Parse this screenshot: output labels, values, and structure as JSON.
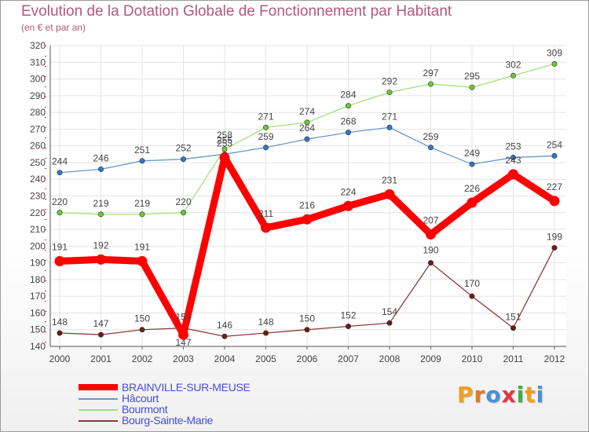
{
  "header": {
    "title": "Evolution de la Dotation Globale de Fonctionnement par Habitant",
    "subtitle": "(en € et par an)"
  },
  "brand": {
    "letters": [
      "P",
      "r",
      "o",
      "x",
      "i",
      "t",
      "i"
    ],
    "colors": [
      "#f0a020",
      "#e07828",
      "#4a8fd8",
      "#e03848",
      "#3cae4a",
      "#f0a020",
      "#4a8fd8"
    ]
  },
  "chart_data": {
    "type": "line",
    "title": "Evolution de la Dotation Globale de Fonctionnement par Habitant",
    "subtitle": "(en € et par an)",
    "x": [
      "2000",
      "2001",
      "2002",
      "2003",
      "2004",
      "2005",
      "2006",
      "2007",
      "2008",
      "2009",
      "2010",
      "2011",
      "2012"
    ],
    "ylim": [
      140,
      320
    ],
    "yticks": [
      140,
      150,
      160,
      170,
      180,
      190,
      200,
      210,
      220,
      230,
      240,
      250,
      260,
      270,
      280,
      290,
      300,
      310,
      320
    ],
    "grid": true,
    "legend_position": "bottom-left",
    "series": [
      {
        "name": "BRAINVILLE-SUR-MEUSE",
        "color": "#ff0000",
        "marker": "#ff0000",
        "emphasis": true,
        "values": [
          191,
          192,
          191,
          147,
          253,
          211,
          216,
          224,
          231,
          207,
          226,
          243,
          227
        ],
        "labels": [
          "191",
          "192",
          "191",
          "147",
          "253",
          "211",
          "216",
          "224",
          "231",
          "207",
          "226",
          "243",
          "227"
        ]
      },
      {
        "name": "Hâcourt",
        "color": "#6699cc",
        "marker": "#2f78c8",
        "emphasis": false,
        "values": [
          244,
          246,
          251,
          252,
          255,
          259,
          264,
          268,
          271,
          259,
          249,
          253,
          254
        ],
        "labels": [
          "244",
          "246",
          "251",
          "252",
          "255",
          "259",
          "264",
          "268",
          "271",
          "259",
          "249",
          "253",
          "254"
        ]
      },
      {
        "name": "Bourmont",
        "color": "#a6e07a",
        "marker": "#66cc33",
        "emphasis": false,
        "values": [
          220,
          219,
          219,
          220,
          258,
          271,
          274,
          284,
          292,
          297,
          295,
          302,
          309
        ],
        "labels": [
          "220",
          "219",
          "219",
          "220",
          "258",
          "271",
          "274",
          "284",
          "292",
          "297",
          "295",
          "302",
          "309"
        ]
      },
      {
        "name": "Bourg-Sainte-Marie",
        "color": "#8b3a3a",
        "marker": "#6e1a1a",
        "emphasis": false,
        "values": [
          148,
          147,
          150,
          151,
          146,
          148,
          150,
          152,
          154,
          190,
          170,
          151,
          199
        ],
        "labels": [
          "148",
          "147",
          "150",
          "151",
          "146",
          "148",
          "150",
          "152",
          "154",
          "190",
          "170",
          "151",
          "199"
        ]
      }
    ]
  }
}
